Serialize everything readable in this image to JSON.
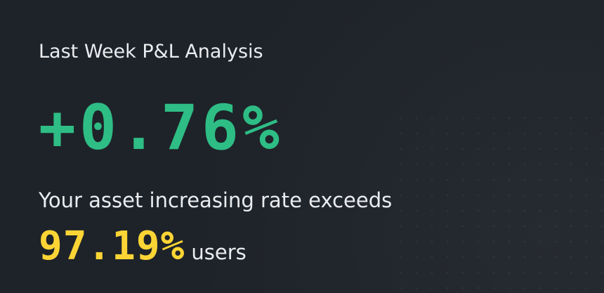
{
  "title": "Last Week P&L Analysis",
  "pnl": "+0.76%",
  "description": "Your asset increasing rate exceeds",
  "rank": "97.19%",
  "rank_suffix": "users"
}
